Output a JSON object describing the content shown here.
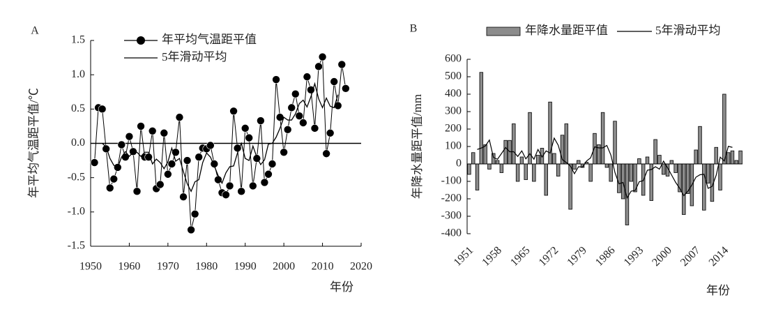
{
  "chart_data": [
    {
      "type": "line",
      "panel_label": "A",
      "y_label": "年平均气温距平值/℃",
      "x_label": "年份",
      "x": [
        1951,
        1952,
        1953,
        1954,
        1955,
        1956,
        1957,
        1958,
        1959,
        1960,
        1961,
        1962,
        1963,
        1964,
        1965,
        1966,
        1967,
        1968,
        1969,
        1970,
        1971,
        1972,
        1973,
        1974,
        1975,
        1976,
        1977,
        1978,
        1979,
        1980,
        1981,
        1982,
        1983,
        1984,
        1985,
        1986,
        1987,
        1988,
        1989,
        1990,
        1991,
        1992,
        1993,
        1994,
        1995,
        1996,
        1997,
        1998,
        1999,
        2000,
        2001,
        2002,
        2003,
        2004,
        2005,
        2006,
        2007,
        2008,
        2009,
        2010,
        2011,
        2012,
        2013,
        2014,
        2015,
        2016
      ],
      "series": [
        {
          "name": "年平均气温距平值",
          "color": "#000000",
          "marker": "circle",
          "values": [
            -0.28,
            0.52,
            0.5,
            -0.08,
            -0.65,
            -0.52,
            -0.35,
            -0.02,
            -0.2,
            0.1,
            -0.12,
            -0.7,
            0.25,
            -0.2,
            -0.2,
            0.18,
            -0.66,
            -0.6,
            0.15,
            -0.45,
            -0.3,
            -0.13,
            0.38,
            -0.78,
            -0.25,
            -1.26,
            -1.03,
            -0.2,
            -0.07,
            -0.08,
            -0.03,
            -0.3,
            -0.53,
            -0.72,
            -0.75,
            -0.62,
            0.47,
            -0.07,
            -0.7,
            0.22,
            0.08,
            -0.62,
            -0.22,
            0.33,
            -0.57,
            -0.45,
            -0.3,
            0.93,
            0.38,
            -0.13,
            0.2,
            0.52,
            0.72,
            0.4,
            0.3,
            0.97,
            0.78,
            0.22,
            1.12,
            1.26,
            -0.15,
            0.15,
            0.9,
            0.55,
            1.15,
            0.8
          ]
        },
        {
          "name": "5年滑动平均",
          "color": "#000000",
          "values": [
            null,
            null,
            0,
            -0.05,
            -0.22,
            -0.32,
            -0.35,
            -0.2,
            -0.12,
            -0.19,
            -0.13,
            -0.13,
            -0.19,
            -0.13,
            -0.13,
            -0.3,
            -0.23,
            -0.28,
            -0.37,
            -0.27,
            -0.07,
            -0.26,
            -0.22,
            -0.41,
            -0.59,
            -0.7,
            -0.56,
            -0.53,
            -0.28,
            -0.14,
            -0.2,
            -0.33,
            -0.47,
            -0.58,
            -0.43,
            -0.34,
            -0.33,
            -0.14,
            0,
            -0.22,
            -0.25,
            -0.04,
            -0.2,
            -0.31,
            -0.24,
            -0.01,
            0,
            0.09,
            0.22,
            0.38,
            0.34,
            0.34,
            0.43,
            0.58,
            0.63,
            0.53,
            0.68,
            0.87,
            0.65,
            0.52,
            0.66,
            0.54,
            0.52,
            0.71,
            null,
            null
          ]
        }
      ],
      "xlim": [
        1950,
        2020
      ],
      "xticks": [
        1950,
        1960,
        1970,
        1980,
        1990,
        2000,
        2010,
        2020
      ],
      "ylim": [
        -1.5,
        1.5
      ],
      "yticks": [
        -1.5,
        {
          "value": -1,
          "label": "-1.0"
        },
        -0.5,
        {
          "value": 0,
          "label": "0.0"
        },
        0.5,
        {
          "value": 1,
          "label": "1.0"
        },
        1.5
      ],
      "legend": "top-left"
    },
    {
      "type": "bar",
      "panel_label": "B",
      "y_label": "年降水量距平值/mm",
      "x_label": "年份",
      "categories": [
        "1951",
        null,
        null,
        null,
        null,
        null,
        null,
        "1958",
        null,
        null,
        null,
        null,
        null,
        null,
        "1965",
        null,
        null,
        null,
        null,
        null,
        null,
        "1972",
        null,
        null,
        null,
        null,
        null,
        null,
        "1979",
        null,
        null,
        null,
        null,
        null,
        null,
        "1986",
        null,
        null,
        null,
        null,
        null,
        null,
        "1993",
        null,
        null,
        null,
        null,
        null,
        null,
        "2000",
        null,
        null,
        null,
        null,
        null,
        null,
        "2007",
        null,
        null,
        null,
        null,
        null,
        null,
        "2014",
        null,
        null,
        null,
        null
      ],
      "series": [
        {
          "name": "年降水量距平值",
          "color": "#8c8c8c",
          "values": [
            -60,
            65,
            -150,
            525,
            110,
            -30,
            60,
            20,
            -50,
            135,
            135,
            230,
            -100,
            40,
            -90,
            295,
            -100,
            50,
            90,
            -180,
            355,
            60,
            -70,
            165,
            230,
            -260,
            -30,
            20,
            -20,
            10,
            -100,
            175,
            110,
            295,
            -20,
            -100,
            245,
            -165,
            -200,
            -350,
            -100,
            -160,
            30,
            -180,
            40,
            -210,
            140,
            50,
            -60,
            -70,
            20,
            -50,
            -160,
            -290,
            -170,
            -240,
            80,
            215,
            -265,
            -110,
            -215,
            95,
            -150,
            400,
            65,
            75,
            20,
            75
          ]
        },
        {
          "name": "5年滑动平均",
          "color": "#000000",
          "type": "line",
          "values": [
            null,
            null,
            83,
            91,
            103,
            137,
            37,
            27,
            60,
            94,
            70,
            70,
            43,
            75,
            29,
            59,
            27,
            83,
            39,
            75,
            62,
            148,
            107,
            25,
            8,
            -12,
            -56,
            -16,
            -18,
            17,
            35,
            98,
            92,
            92,
            106,
            51,
            -49,
            -114,
            -106,
            -195,
            -156,
            -152,
            -102,
            -96,
            -36,
            -32,
            -16,
            -30,
            16,
            -22,
            -64,
            -106,
            -140,
            -182,
            -157,
            -121,
            -76,
            -62,
            -59,
            -140,
            -129,
            -65,
            39,
            17,
            101,
            95,
            null,
            null
          ]
        }
      ],
      "ylim": [
        -400,
        600
      ],
      "yticks": [
        -400,
        -300,
        -200,
        -100,
        0,
        100,
        200,
        300,
        400,
        500,
        600
      ],
      "legend": "top"
    }
  ]
}
